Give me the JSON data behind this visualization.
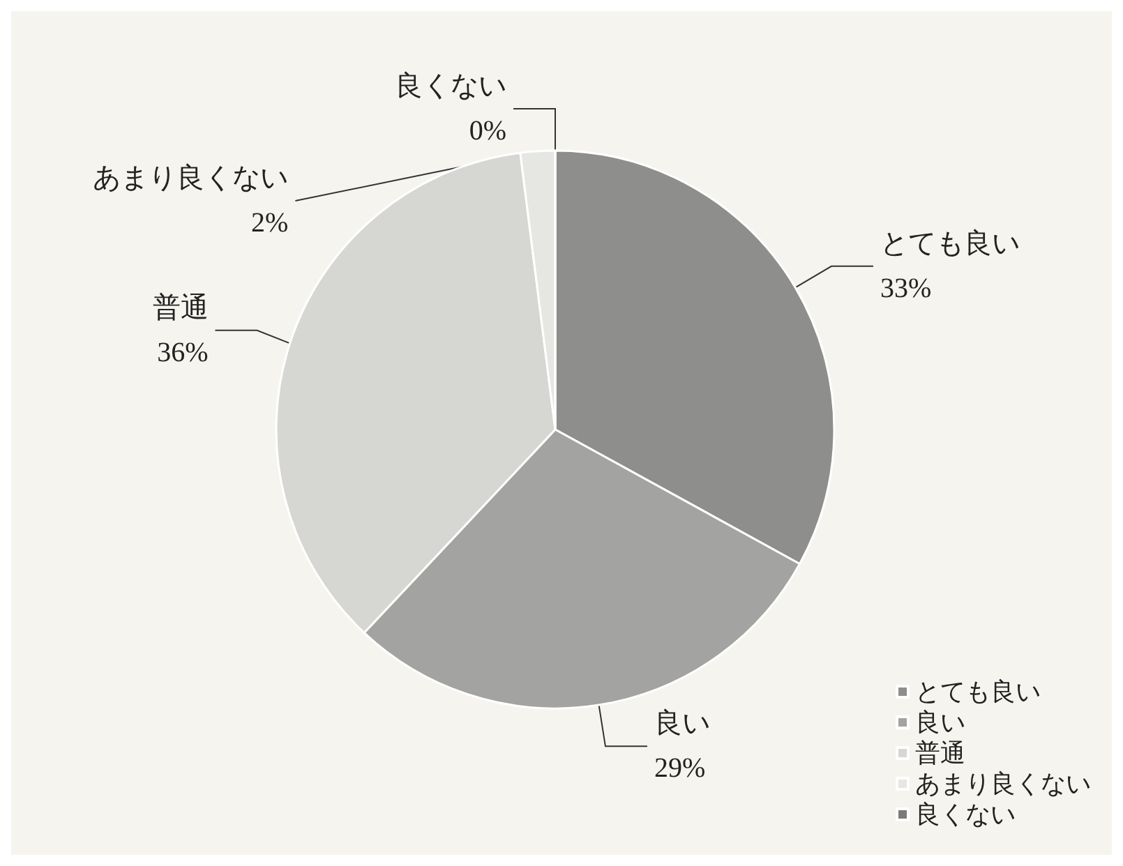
{
  "chart_data": {
    "type": "pie",
    "categories": [
      "とても良い",
      "良い",
      "普通",
      "あまり良くない",
      "良くない"
    ],
    "values": [
      33,
      29,
      36,
      2,
      0
    ],
    "value_labels": [
      "33%",
      "29%",
      "36%",
      "2%",
      "0%"
    ],
    "colors": [
      "#8e8e8c",
      "#a3a3a1",
      "#d6d6d3",
      "#e6e6e3",
      "#7a7a78"
    ],
    "legend": "bottom right"
  }
}
